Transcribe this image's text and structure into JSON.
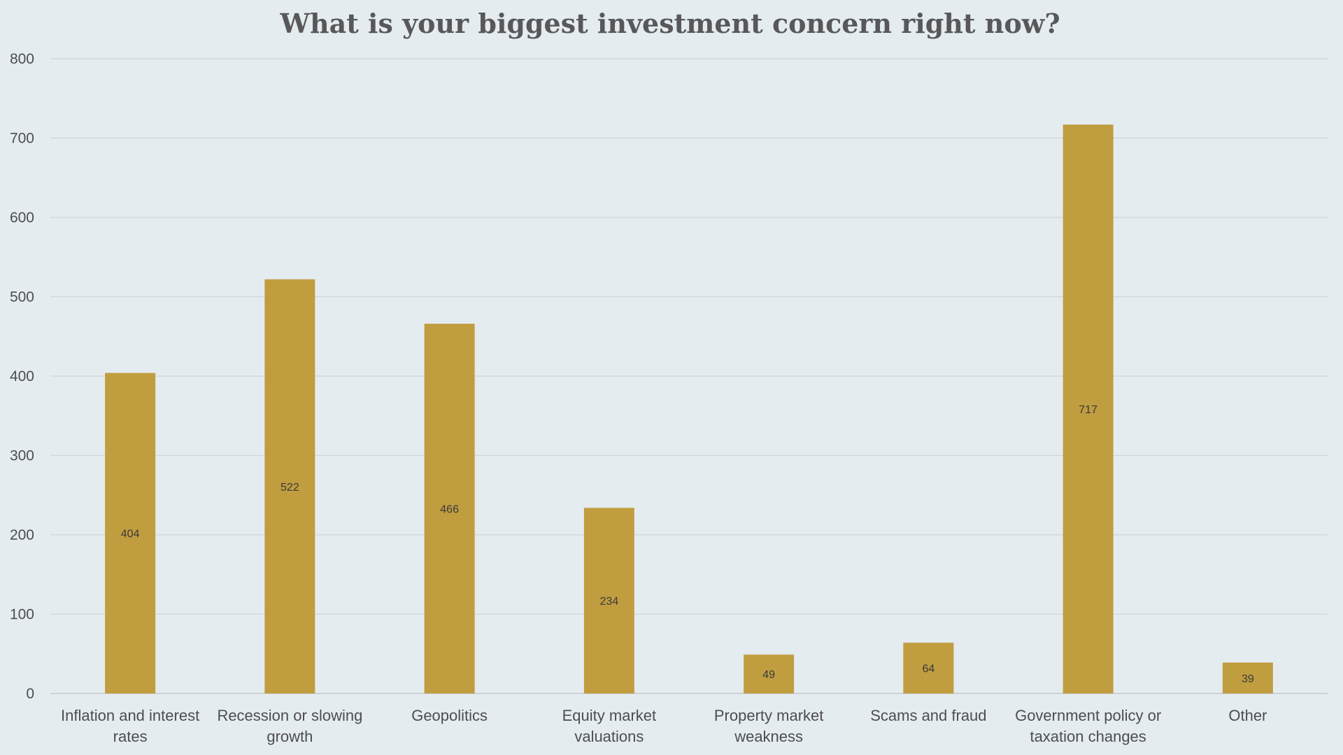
{
  "chart_data": {
    "type": "bar",
    "title": "What is your biggest investment concern right now?",
    "xlabel": "",
    "ylabel": "",
    "ylim": [
      0,
      800
    ],
    "yticks": [
      0,
      100,
      200,
      300,
      400,
      500,
      600,
      700,
      800
    ],
    "grid": true,
    "legend": "none",
    "bar_color": "#c09d3f",
    "background_color": "#e5ecf0",
    "categories": [
      [
        "Inflation and interest",
        "rates"
      ],
      [
        "Recession or slowing",
        "growth"
      ],
      [
        "Geopolitics"
      ],
      [
        "Equity market",
        "valuations"
      ],
      [
        "Property market",
        "weakness"
      ],
      [
        "Scams and fraud"
      ],
      [
        "Government policy or",
        "taxation changes"
      ],
      [
        "Other"
      ]
    ],
    "values": [
      404,
      522,
      466,
      234,
      49,
      64,
      717,
      39
    ]
  }
}
